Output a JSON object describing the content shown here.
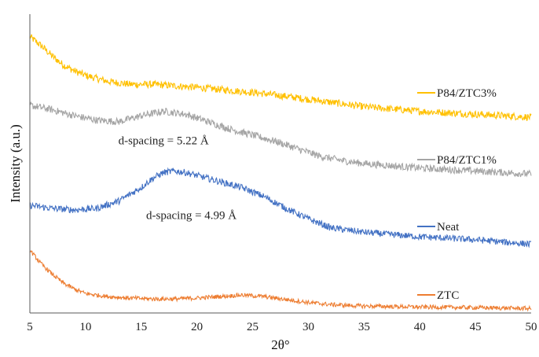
{
  "chart_data": {
    "type": "line",
    "title": "",
    "xlabel": "2θ°",
    "ylabel": "Intensity (a.u.)",
    "xlim": [
      5,
      50
    ],
    "ylim": [
      0,
      100
    ],
    "y_ticks_shown": false,
    "grid": false,
    "legend": "inline-right",
    "x_ticks": [
      "5",
      "10",
      "15",
      "20",
      "25",
      "30",
      "35",
      "40",
      "45",
      "50"
    ],
    "annotations": [
      {
        "text": "d-spacing = 5.22 Å",
        "x": 17,
        "y": 56.5
      },
      {
        "text": "d-spacing = 4.99 Å",
        "x": 19.5,
        "y": 31.5
      }
    ],
    "series": [
      {
        "name": "P84/ZTC3%",
        "color": "#FFC000",
        "noise": 1.2,
        "x": [
          5,
          6,
          7,
          8,
          9,
          10,
          12,
          14,
          16,
          18,
          20,
          22,
          25,
          28,
          30,
          35,
          40,
          45,
          50
        ],
        "y": [
          92.5,
          89.5,
          86,
          83,
          81,
          79.5,
          77.5,
          76.5,
          76.5,
          76,
          75.5,
          74.8,
          73.8,
          72.5,
          71.5,
          69,
          67.5,
          66.5,
          65.5
        ]
      },
      {
        "name": "P84/ZTC1%",
        "color": "#A5A5A5",
        "noise": 1.2,
        "x": [
          5,
          7,
          9,
          11,
          13,
          15,
          17,
          19,
          21,
          23,
          25,
          27,
          29,
          31,
          33,
          35,
          40,
          45,
          50
        ],
        "y": [
          69.5,
          68,
          66,
          64.5,
          64,
          66,
          67.5,
          66.5,
          64,
          61.5,
          59.5,
          57.5,
          55,
          52.5,
          51,
          50,
          48.5,
          47.5,
          46.5
        ]
      },
      {
        "name": "Neat",
        "color": "#4472C4",
        "noise": 1.1,
        "x": [
          5,
          7,
          9,
          11,
          13,
          15,
          16,
          17,
          18,
          19,
          20,
          22,
          24,
          26,
          28,
          30,
          32,
          35,
          40,
          45,
          50
        ],
        "y": [
          36,
          35,
          34.5,
          35,
          37.5,
          42,
          45,
          47,
          47.5,
          47,
          46,
          44,
          42,
          39,
          35,
          31.5,
          28.5,
          27,
          25.5,
          24.5,
          23
        ]
      },
      {
        "name": "ZTC",
        "color": "#ED7D31",
        "noise": 0.7,
        "x": [
          5,
          6,
          7,
          8,
          9,
          10,
          12,
          14,
          16,
          18,
          20,
          22,
          24,
          26,
          28,
          30,
          32,
          35,
          40,
          45,
          50
        ],
        "y": [
          21,
          16.5,
          13,
          10,
          8,
          6.5,
          5.5,
          5,
          4.7,
          4.7,
          5,
          5.5,
          6,
          5.5,
          4.5,
          3.5,
          2.8,
          2.3,
          2,
          1.8,
          1.5
        ]
      }
    ]
  }
}
